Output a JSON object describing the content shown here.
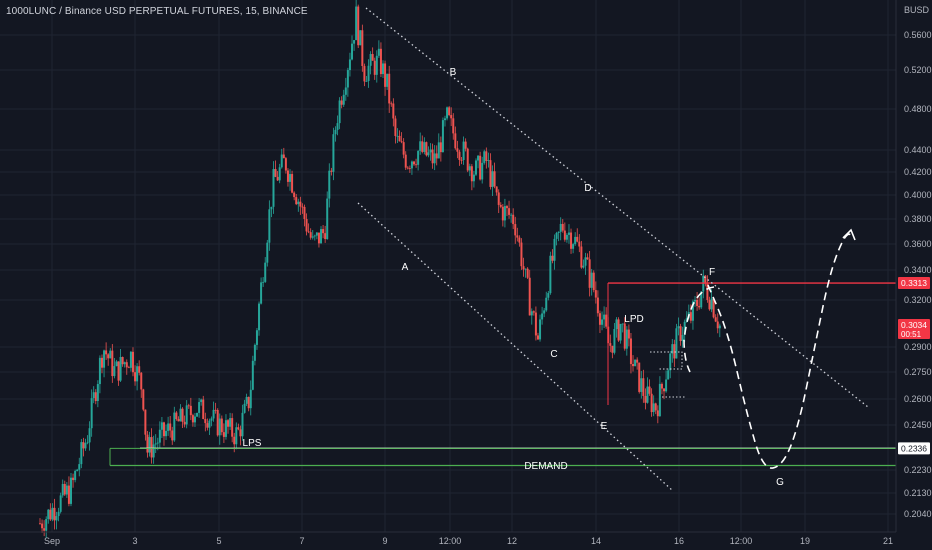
{
  "header": {
    "title": "1000LUNC / Binance USD PERPETUAL FUTURES, 15, BINANCE",
    "currency": "BUSD"
  },
  "colors": {
    "background": "#131722",
    "grid": "#1f2432",
    "axis_text": "#b2b5be",
    "up": "#26a69a",
    "down": "#ef5350",
    "resistance": "#f23645",
    "support": "#ffffff",
    "demand": "#4caf50"
  },
  "chart_data": {
    "type": "candlestick",
    "title": "1000LUNC / Binance USD PERPETUAL FUTURES, 15, BINANCE",
    "y_axis_ticks": [
      "0.5600",
      "0.5200",
      "0.4800",
      "0.4400",
      "0.4200",
      "0.4000",
      "0.3800",
      "0.3600",
      "0.3400",
      "0.3200",
      "0.2900",
      "0.2750",
      "0.2600",
      "0.2450",
      "0.2230",
      "0.2130",
      "0.2040"
    ],
    "x_axis_ticks": [
      "Sep",
      "3",
      "5",
      "7",
      "9",
      "12:00",
      "12",
      "14",
      "16",
      "12:00",
      "19",
      "21"
    ],
    "price_badges": [
      {
        "label": "0.3313",
        "kind": "resistance"
      },
      {
        "label": "0.3034",
        "sub": "00:51",
        "kind": "last"
      },
      {
        "label": "0.2336",
        "kind": "support"
      }
    ],
    "annotations": [
      "A",
      "B",
      "C",
      "D",
      "E",
      "F",
      "G",
      "LPD",
      "LPS",
      "DEMAND"
    ],
    "price_path": [
      {
        "t": 0,
        "p": 0.2
      },
      {
        "t": 0.8,
        "p": 0.215
      },
      {
        "t": 1.2,
        "p": 0.24
      },
      {
        "t": 1.6,
        "p": 0.29
      },
      {
        "t": 1.9,
        "p": 0.275
      },
      {
        "t": 2.3,
        "p": 0.285
      },
      {
        "t": 2.6,
        "p": 0.265
      },
      {
        "t": 2.7,
        "p": 0.232
      },
      {
        "t": 3.0,
        "p": 0.238
      },
      {
        "t": 3.4,
        "p": 0.245
      },
      {
        "t": 4.0,
        "p": 0.255
      },
      {
        "t": 4.5,
        "p": 0.246
      },
      {
        "t": 5.0,
        "p": 0.24
      },
      {
        "t": 5.3,
        "p": 0.26
      },
      {
        "t": 5.6,
        "p": 0.33
      },
      {
        "t": 5.9,
        "p": 0.41
      },
      {
        "t": 6.2,
        "p": 0.43
      },
      {
        "t": 6.5,
        "p": 0.4
      },
      {
        "t": 6.9,
        "p": 0.36
      },
      {
        "t": 7.2,
        "p": 0.37
      },
      {
        "t": 7.5,
        "p": 0.47
      },
      {
        "t": 7.8,
        "p": 0.53
      },
      {
        "t": 8.0,
        "p": 0.58
      },
      {
        "t": 8.2,
        "p": 0.52
      },
      {
        "t": 8.6,
        "p": 0.53
      },
      {
        "t": 8.8,
        "p": 0.5
      },
      {
        "t": 9.0,
        "p": 0.45
      },
      {
        "t": 9.3,
        "p": 0.43
      },
      {
        "t": 9.6,
        "p": 0.44
      },
      {
        "t": 10.0,
        "p": 0.43
      },
      {
        "t": 10.3,
        "p": 0.47
      },
      {
        "t": 10.6,
        "p": 0.445
      },
      {
        "t": 11.0,
        "p": 0.42
      },
      {
        "t": 11.3,
        "p": 0.43
      },
      {
        "t": 11.6,
        "p": 0.39
      },
      {
        "t": 12.0,
        "p": 0.38
      },
      {
        "t": 12.3,
        "p": 0.33
      },
      {
        "t": 12.6,
        "p": 0.295
      },
      {
        "t": 12.9,
        "p": 0.34
      },
      {
        "t": 13.2,
        "p": 0.375
      },
      {
        "t": 13.5,
        "p": 0.365
      },
      {
        "t": 13.8,
        "p": 0.345
      },
      {
        "t": 14.1,
        "p": 0.32
      },
      {
        "t": 14.4,
        "p": 0.29
      },
      {
        "t": 14.7,
        "p": 0.305
      },
      {
        "t": 15.0,
        "p": 0.28
      },
      {
        "t": 15.3,
        "p": 0.262
      },
      {
        "t": 15.6,
        "p": 0.255
      },
      {
        "t": 15.9,
        "p": 0.28
      },
      {
        "t": 16.2,
        "p": 0.3
      },
      {
        "t": 16.5,
        "p": 0.31
      },
      {
        "t": 16.8,
        "p": 0.331
      },
      {
        "t": 17.0,
        "p": 0.32
      },
      {
        "t": 17.2,
        "p": 0.3034
      }
    ],
    "projection_path": [
      {
        "t": 16.9,
        "p": 0.33
      },
      {
        "t": 17.4,
        "p": 0.3
      },
      {
        "t": 17.9,
        "p": 0.25
      },
      {
        "t": 18.3,
        "p": 0.223
      },
      {
        "t": 18.8,
        "p": 0.225
      },
      {
        "t": 19.2,
        "p": 0.245
      },
      {
        "t": 19.6,
        "p": 0.29
      },
      {
        "t": 20.0,
        "p": 0.34
      },
      {
        "t": 20.4,
        "p": 0.37
      },
      {
        "t": 20.6,
        "p": 0.365
      }
    ],
    "levels": {
      "resistance": 0.3313,
      "support": 0.2336,
      "demand_low": 0.2252
    },
    "grid": true
  }
}
